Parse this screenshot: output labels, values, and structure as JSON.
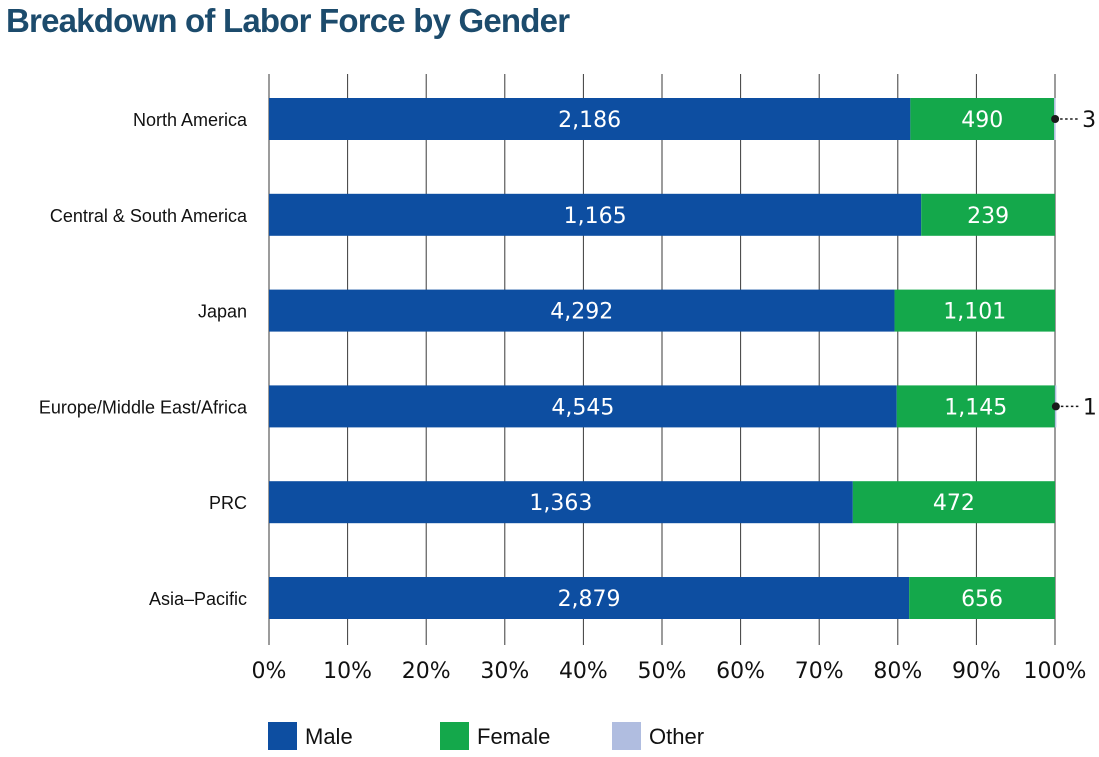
{
  "chart_data": {
    "type": "bar",
    "orientation": "horizontal",
    "stacked": "percent",
    "title": "Breakdown of Labor Force by Gender",
    "categories": [
      "North America",
      "Central & South America",
      "Japan",
      "Europe/Middle East/Africa",
      "PRC",
      "Asia–Pacific"
    ],
    "series": [
      {
        "name": "Male",
        "color": "#0d4ea1",
        "values": [
          2186,
          1165,
          4292,
          4545,
          1363,
          2879
        ],
        "labels": [
          "2,186",
          "1,165",
          "4,292",
          "4,545",
          "1,363",
          "2,879"
        ]
      },
      {
        "name": "Female",
        "color": "#14a84b",
        "values": [
          490,
          239,
          1101,
          1145,
          472,
          656
        ],
        "labels": [
          "490",
          "239",
          "1,101",
          "1,145",
          "472",
          "656"
        ]
      },
      {
        "name": "Other",
        "color": "#b0bde0",
        "values": [
          3,
          0,
          0,
          1,
          0,
          0
        ],
        "labels": [
          "3",
          "",
          "",
          "1",
          "",
          ""
        ]
      }
    ],
    "xlim": [
      0,
      100
    ],
    "xticks": [
      "0%",
      "10%",
      "20%",
      "30%",
      "40%",
      "50%",
      "60%",
      "70%",
      "80%",
      "90%",
      "100%"
    ],
    "grid": true,
    "legend": {
      "position": "bottom",
      "entries": [
        "Male",
        "Female",
        "Other"
      ]
    }
  }
}
